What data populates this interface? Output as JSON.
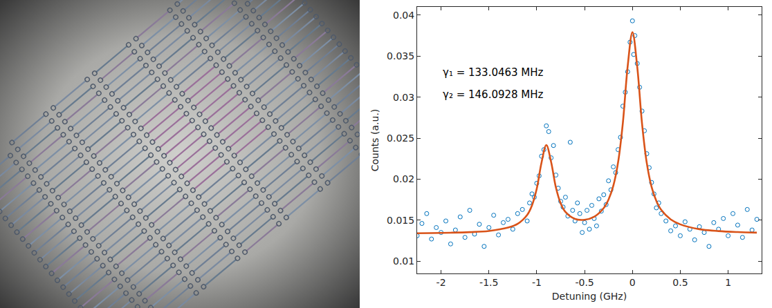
{
  "chart_data": {
    "type": "scatter",
    "x_label": "Detuning (GHz)",
    "y_label": "Counts (a.u.)",
    "annotations": [
      "γ₁ = 133.0463 MHz",
      "γ₂ = 146.0928 MHz"
    ],
    "xlim": [
      -2.25,
      1.35
    ],
    "xticks": [
      -2,
      -1.5,
      -1,
      -0.5,
      0,
      0.5,
      1
    ],
    "ylim": [
      0.0085,
      0.041
    ],
    "yticks": [
      0.01,
      0.015,
      0.02,
      0.025,
      0.03,
      0.035,
      0.04
    ],
    "grid": false,
    "series": [
      {
        "type": "scatter",
        "marker": "circle-open",
        "color": "#0072bd",
        "x": [
          -2.25,
          -2.2,
          -2.15,
          -2.1,
          -2.05,
          -2.0,
          -1.95,
          -1.9,
          -1.85,
          -1.8,
          -1.75,
          -1.7,
          -1.65,
          -1.6,
          -1.55,
          -1.5,
          -1.45,
          -1.4,
          -1.35,
          -1.3,
          -1.25,
          -1.2,
          -1.15,
          -1.1,
          -1.075,
          -1.05,
          -1.025,
          -1.0,
          -0.975,
          -0.95,
          -0.925,
          -0.9,
          -0.875,
          -0.85,
          -0.825,
          -0.8,
          -0.775,
          -0.75,
          -0.725,
          -0.7,
          -0.675,
          -0.65,
          -0.625,
          -0.6,
          -0.575,
          -0.55,
          -0.525,
          -0.5,
          -0.475,
          -0.45,
          -0.425,
          -0.4,
          -0.375,
          -0.35,
          -0.325,
          -0.3,
          -0.275,
          -0.25,
          -0.225,
          -0.2,
          -0.175,
          -0.15,
          -0.125,
          -0.1,
          -0.075,
          -0.05,
          -0.025,
          0.0,
          0.0125,
          0.025,
          0.05,
          0.075,
          0.1,
          0.125,
          0.15,
          0.175,
          0.2,
          0.225,
          0.25,
          0.275,
          0.3,
          0.35,
          0.4,
          0.45,
          0.5,
          0.55,
          0.6,
          0.65,
          0.7,
          0.75,
          0.8,
          0.85,
          0.9,
          0.95,
          1.0,
          1.05,
          1.1,
          1.15,
          1.2,
          1.25,
          1.3
        ],
        "values": [
          0.0131,
          0.0146,
          0.0158,
          0.0127,
          0.0141,
          0.0135,
          0.0149,
          0.0121,
          0.0138,
          0.0154,
          0.0129,
          0.0162,
          0.0133,
          0.0145,
          0.0118,
          0.0141,
          0.0156,
          0.0132,
          0.0147,
          0.0151,
          0.0139,
          0.0158,
          0.0163,
          0.0149,
          0.0171,
          0.0182,
          0.0178,
          0.0195,
          0.0204,
          0.0228,
          0.0236,
          0.0265,
          0.0258,
          0.0226,
          0.0241,
          0.0205,
          0.0189,
          0.0173,
          0.0166,
          0.0178,
          0.0155,
          0.0245,
          0.0162,
          0.0149,
          0.0171,
          0.0158,
          0.0135,
          0.0147,
          0.0162,
          0.0139,
          0.0168,
          0.0152,
          0.0143,
          0.0176,
          0.0161,
          0.0181,
          0.0169,
          0.0198,
          0.0187,
          0.0215,
          0.0208,
          0.0236,
          0.0251,
          0.0289,
          0.0306,
          0.0331,
          0.0367,
          0.0393,
          0.0352,
          0.0375,
          0.0341,
          0.0312,
          0.0283,
          0.0259,
          0.0231,
          0.0214,
          0.0196,
          0.0182,
          0.0165,
          0.0171,
          0.0158,
          0.0149,
          0.0137,
          0.0143,
          0.0131,
          0.0148,
          0.0139,
          0.0126,
          0.0142,
          0.0135,
          0.0118,
          0.0147,
          0.0139,
          0.0152,
          0.0131,
          0.0158,
          0.0144,
          0.0129,
          0.0163,
          0.0138,
          0.0151
        ]
      },
      {
        "type": "line",
        "line_style": "solid",
        "color": "#d95319",
        "x": [
          -2.3,
          -2.1,
          -1.9,
          -1.7,
          -1.5,
          -1.3,
          -1.2,
          -1.1,
          -1.05,
          -1.0,
          -0.95,
          -0.9,
          -0.85,
          -0.8,
          -0.75,
          -0.7,
          -0.6,
          -0.5,
          -0.4,
          -0.3,
          -0.25,
          -0.2,
          -0.15,
          -0.1,
          -0.05,
          0,
          0.05,
          0.1,
          0.15,
          0.2,
          0.25,
          0.3,
          0.4,
          0.5,
          0.7,
          0.9,
          1.1,
          1.3
        ],
        "values": [
          0.0134,
          0.01343,
          0.01347,
          0.01354,
          0.01368,
          0.01409,
          0.01455,
          0.01564,
          0.0168,
          0.01884,
          0.02202,
          0.02416,
          0.0221,
          0.019,
          0.01705,
          0.016,
          0.01515,
          0.01505,
          0.01542,
          0.01648,
          0.01751,
          0.01918,
          0.02205,
          0.02687,
          0.03373,
          0.03792,
          0.0337,
          0.02681,
          0.02196,
          0.01906,
          0.01734,
          0.01626,
          0.01509,
          0.01449,
          0.0139,
          0.01367,
          0.01355,
          0.01348
        ]
      }
    ]
  }
}
